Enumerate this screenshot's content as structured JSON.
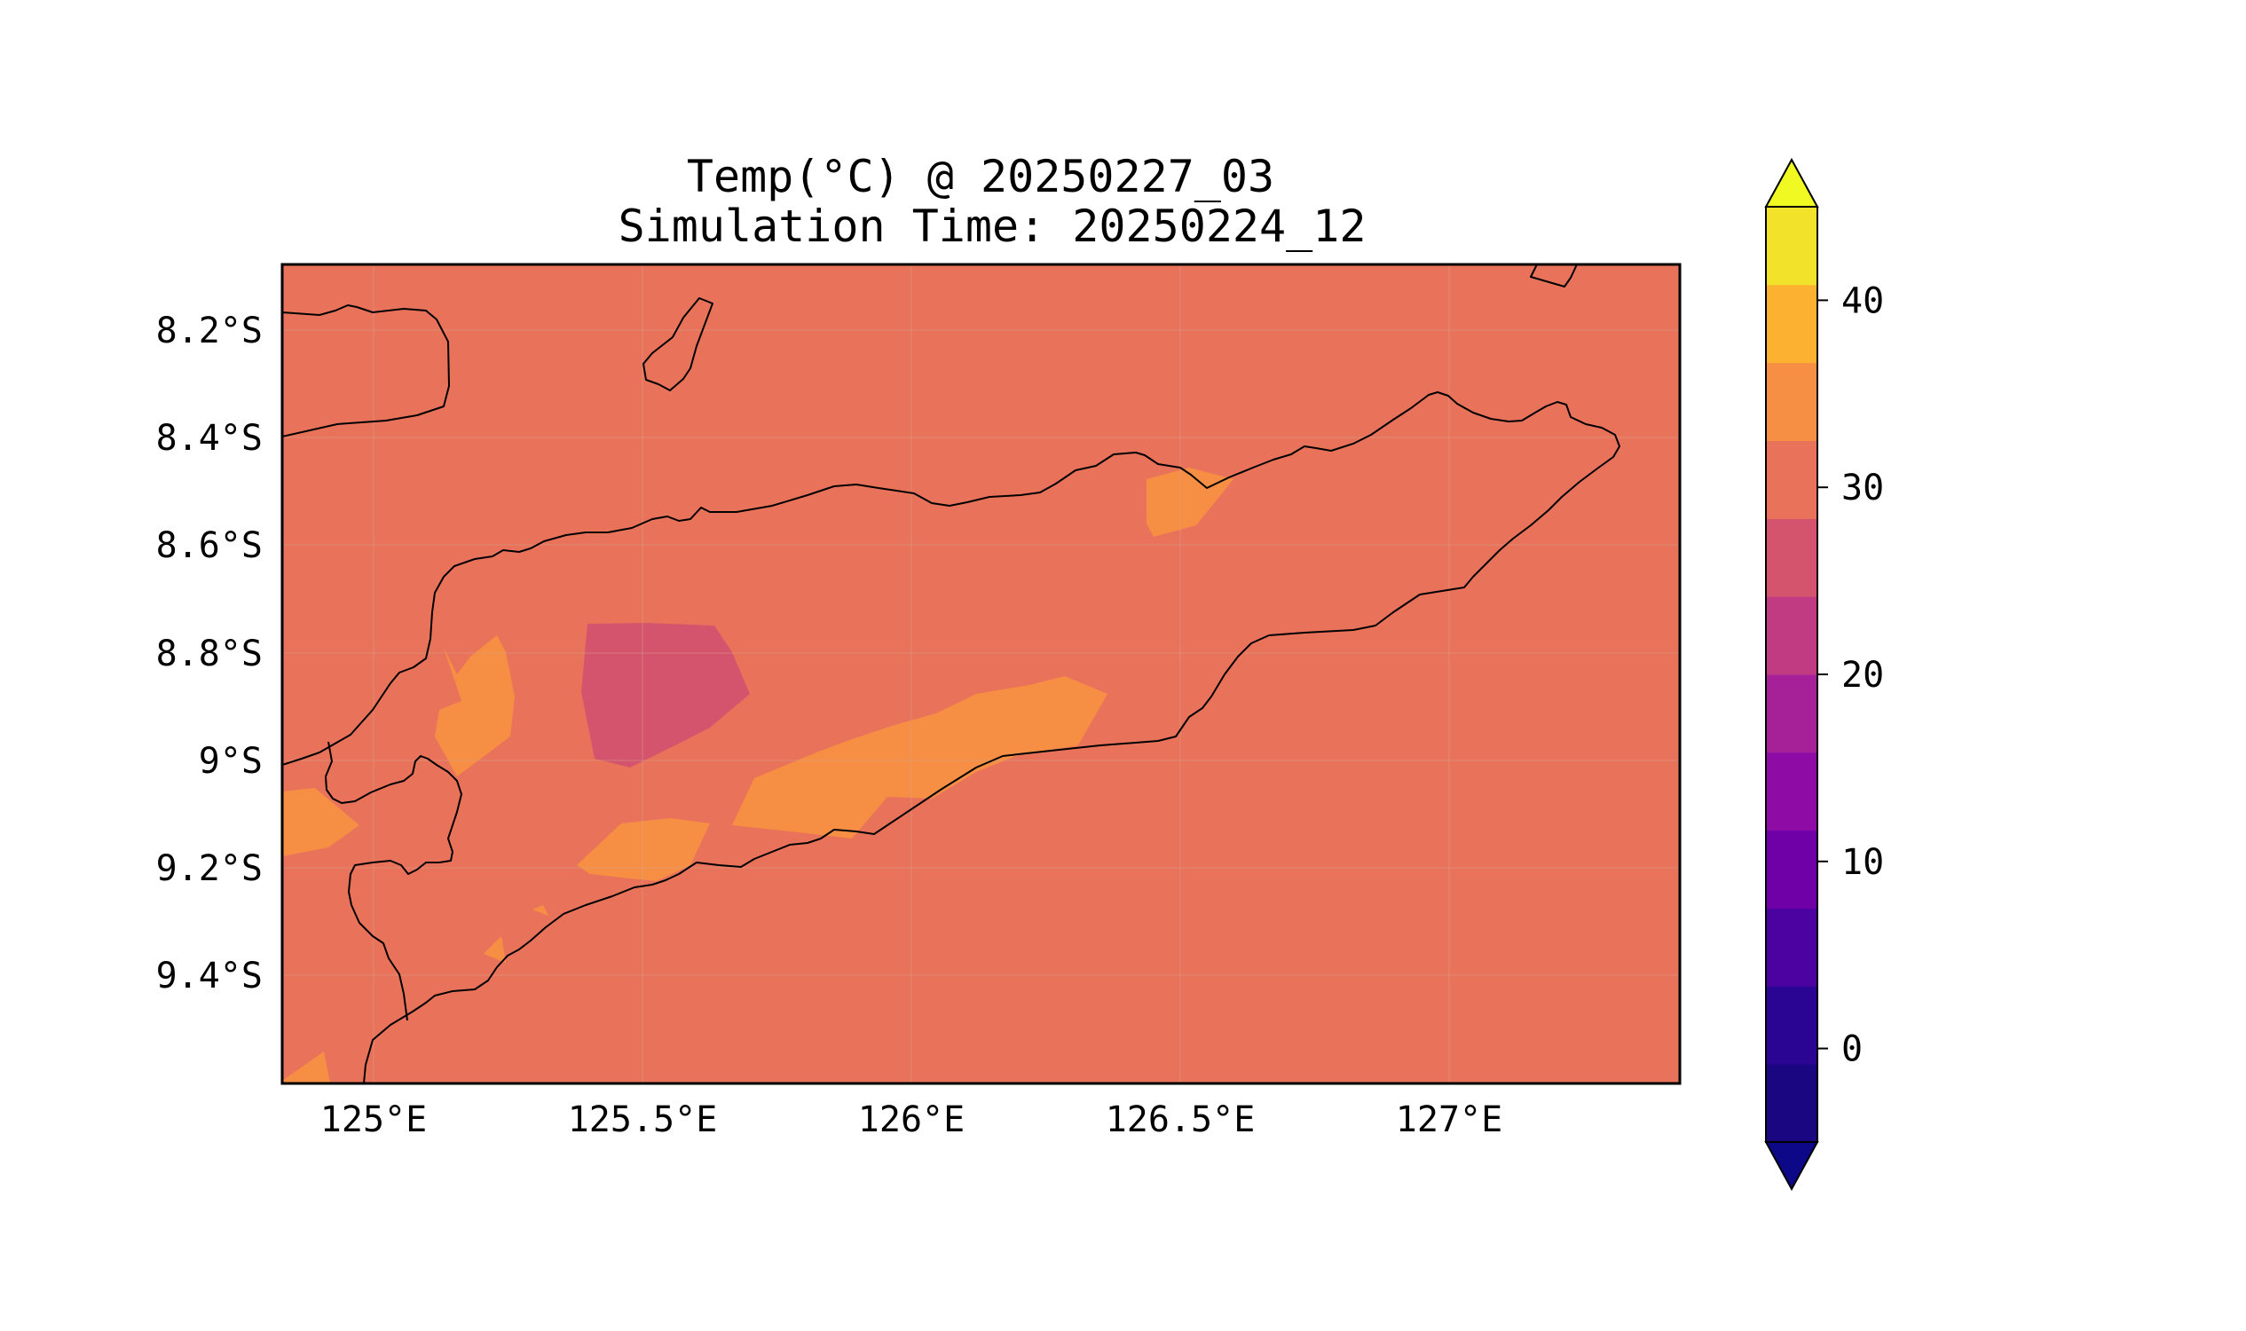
{
  "title": {
    "line1": "Temp(°C) @ 20250227_03",
    "line2": "Simulation Time: 20250224_12"
  },
  "axes": {
    "x_ticks": [
      "125°E",
      "125.5°E",
      "126°E",
      "126.5°E",
      "127°E"
    ],
    "y_ticks": [
      "8.2°S",
      "8.4°S",
      "8.6°S",
      "8.8°S",
      "9°S",
      "9.2°S",
      "9.4°S"
    ],
    "x_range_deg_e": [
      124.83,
      127.42
    ],
    "y_range_deg_s": [
      8.08,
      9.6
    ]
  },
  "colorbar": {
    "ticks": [
      "0",
      "10",
      "20",
      "30",
      "40"
    ],
    "levels": [
      -5,
      0,
      5,
      10,
      15,
      20,
      25,
      30,
      35,
      40,
      45
    ],
    "colors": [
      "#1a0680",
      "#2a0593",
      "#4c02a1",
      "#6f00a8",
      "#8e0ba5",
      "#a62098",
      "#c13b82",
      "#d4546e",
      "#e9735a",
      "#f68f44",
      "#fdb130",
      "#f2e32a"
    ],
    "under_color": "#0d0887",
    "over_color": "#f0f921",
    "extend": "both"
  },
  "map": {
    "background_color": "#e9735a",
    "colormap": "plasma"
  }
}
